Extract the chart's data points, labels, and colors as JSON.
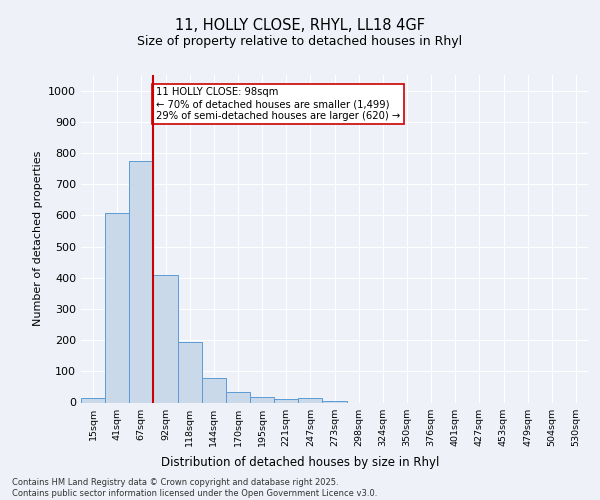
{
  "title_line1": "11, HOLLY CLOSE, RHYL, LL18 4GF",
  "title_line2": "Size of property relative to detached houses in Rhyl",
  "xlabel": "Distribution of detached houses by size in Rhyl",
  "ylabel": "Number of detached properties",
  "categories": [
    "15sqm",
    "41sqm",
    "67sqm",
    "92sqm",
    "118sqm",
    "144sqm",
    "170sqm",
    "195sqm",
    "221sqm",
    "247sqm",
    "273sqm",
    "298sqm",
    "324sqm",
    "350sqm",
    "376sqm",
    "401sqm",
    "427sqm",
    "453sqm",
    "479sqm",
    "504sqm",
    "530sqm"
  ],
  "values": [
    15,
    608,
    775,
    410,
    193,
    78,
    35,
    18,
    12,
    13,
    5,
    0,
    0,
    0,
    0,
    0,
    0,
    0,
    0,
    0,
    0
  ],
  "bar_color": "#c9d9ea",
  "bar_edge_color": "#5b9bd5",
  "vline_x": 3,
  "vline_color": "#cc0000",
  "annotation_text": "11 HOLLY CLOSE: 98sqm\n← 70% of detached houses are smaller (1,499)\n29% of semi-detached houses are larger (620) →",
  "annotation_box_color": "#ffffff",
  "annotation_box_edge": "#cc0000",
  "ylim": [
    0,
    1050
  ],
  "yticks": [
    0,
    100,
    200,
    300,
    400,
    500,
    600,
    700,
    800,
    900,
    1000
  ],
  "background_color": "#eef2f8",
  "grid_color": "#ffffff",
  "footer_line1": "Contains HM Land Registry data © Crown copyright and database right 2025.",
  "footer_line2": "Contains public sector information licensed under the Open Government Licence v3.0."
}
